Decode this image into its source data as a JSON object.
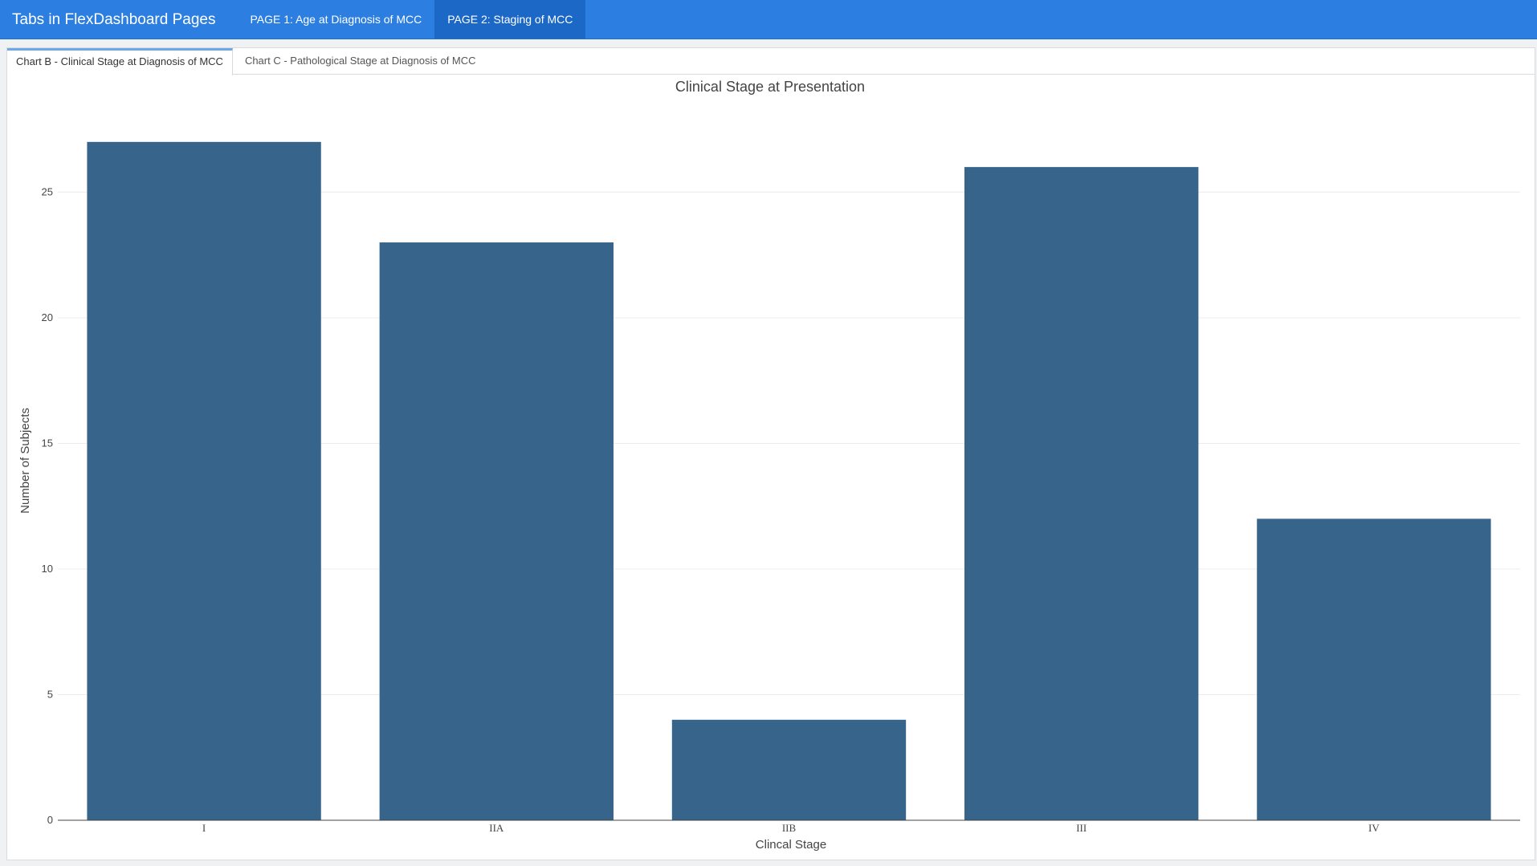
{
  "navbar": {
    "brand": "Tabs in FlexDashboard Pages",
    "items": [
      {
        "label": "PAGE 1: Age at Diagnosis of MCC",
        "active": false
      },
      {
        "label": "PAGE 2: Staging of MCC",
        "active": true
      }
    ]
  },
  "tabs": [
    {
      "label": "Chart B - Clinical Stage at Diagnosis of MCC",
      "active": true
    },
    {
      "label": "Chart C - Pathological Stage at Diagnosis of MCC",
      "active": false
    }
  ],
  "colors": {
    "navbar": "#2c7fe0",
    "bar": "#36648b"
  },
  "chart_data": {
    "type": "bar",
    "title": "Clinical Stage at Presentation",
    "xlabel": "Clincal Stage",
    "ylabel": "Number of Subjects",
    "categories": [
      "I",
      "IIA",
      "IIB",
      "III",
      "IV"
    ],
    "values": [
      27,
      23,
      4,
      26,
      12
    ],
    "ylim": [
      0,
      28.4
    ],
    "yticks": [
      0,
      5,
      10,
      15,
      20,
      25
    ],
    "grid": true
  }
}
